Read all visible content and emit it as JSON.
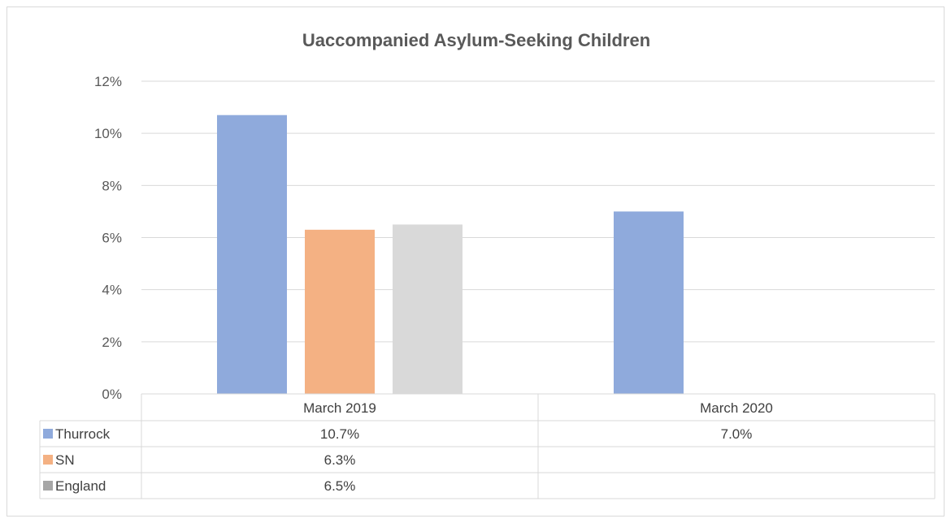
{
  "chart_data": {
    "type": "bar",
    "title": "Uaccompanied Asylum-Seeking Children",
    "categories": [
      "March 2019",
      "March 2020"
    ],
    "series": [
      {
        "name": "Thurrock",
        "values": [
          10.7,
          7.0
        ],
        "labels": [
          "10.7%",
          "7.0%"
        ],
        "color": "#8faadc"
      },
      {
        "name": "SN",
        "values": [
          6.3,
          null
        ],
        "labels": [
          "6.3%",
          ""
        ],
        "color": "#f4b183"
      },
      {
        "name": "England",
        "values": [
          6.5,
          null
        ],
        "labels": [
          "6.5%",
          ""
        ],
        "color": "#d9d9d9"
      }
    ],
    "yticks": [
      "0%",
      "2%",
      "4%",
      "6%",
      "8%",
      "10%",
      "12%"
    ],
    "ylim": [
      0,
      12
    ],
    "ylabel": "",
    "xlabel": "",
    "grid": true,
    "legend": "data-table"
  },
  "colors": {
    "legend_england_key": "#a6a6a6"
  }
}
